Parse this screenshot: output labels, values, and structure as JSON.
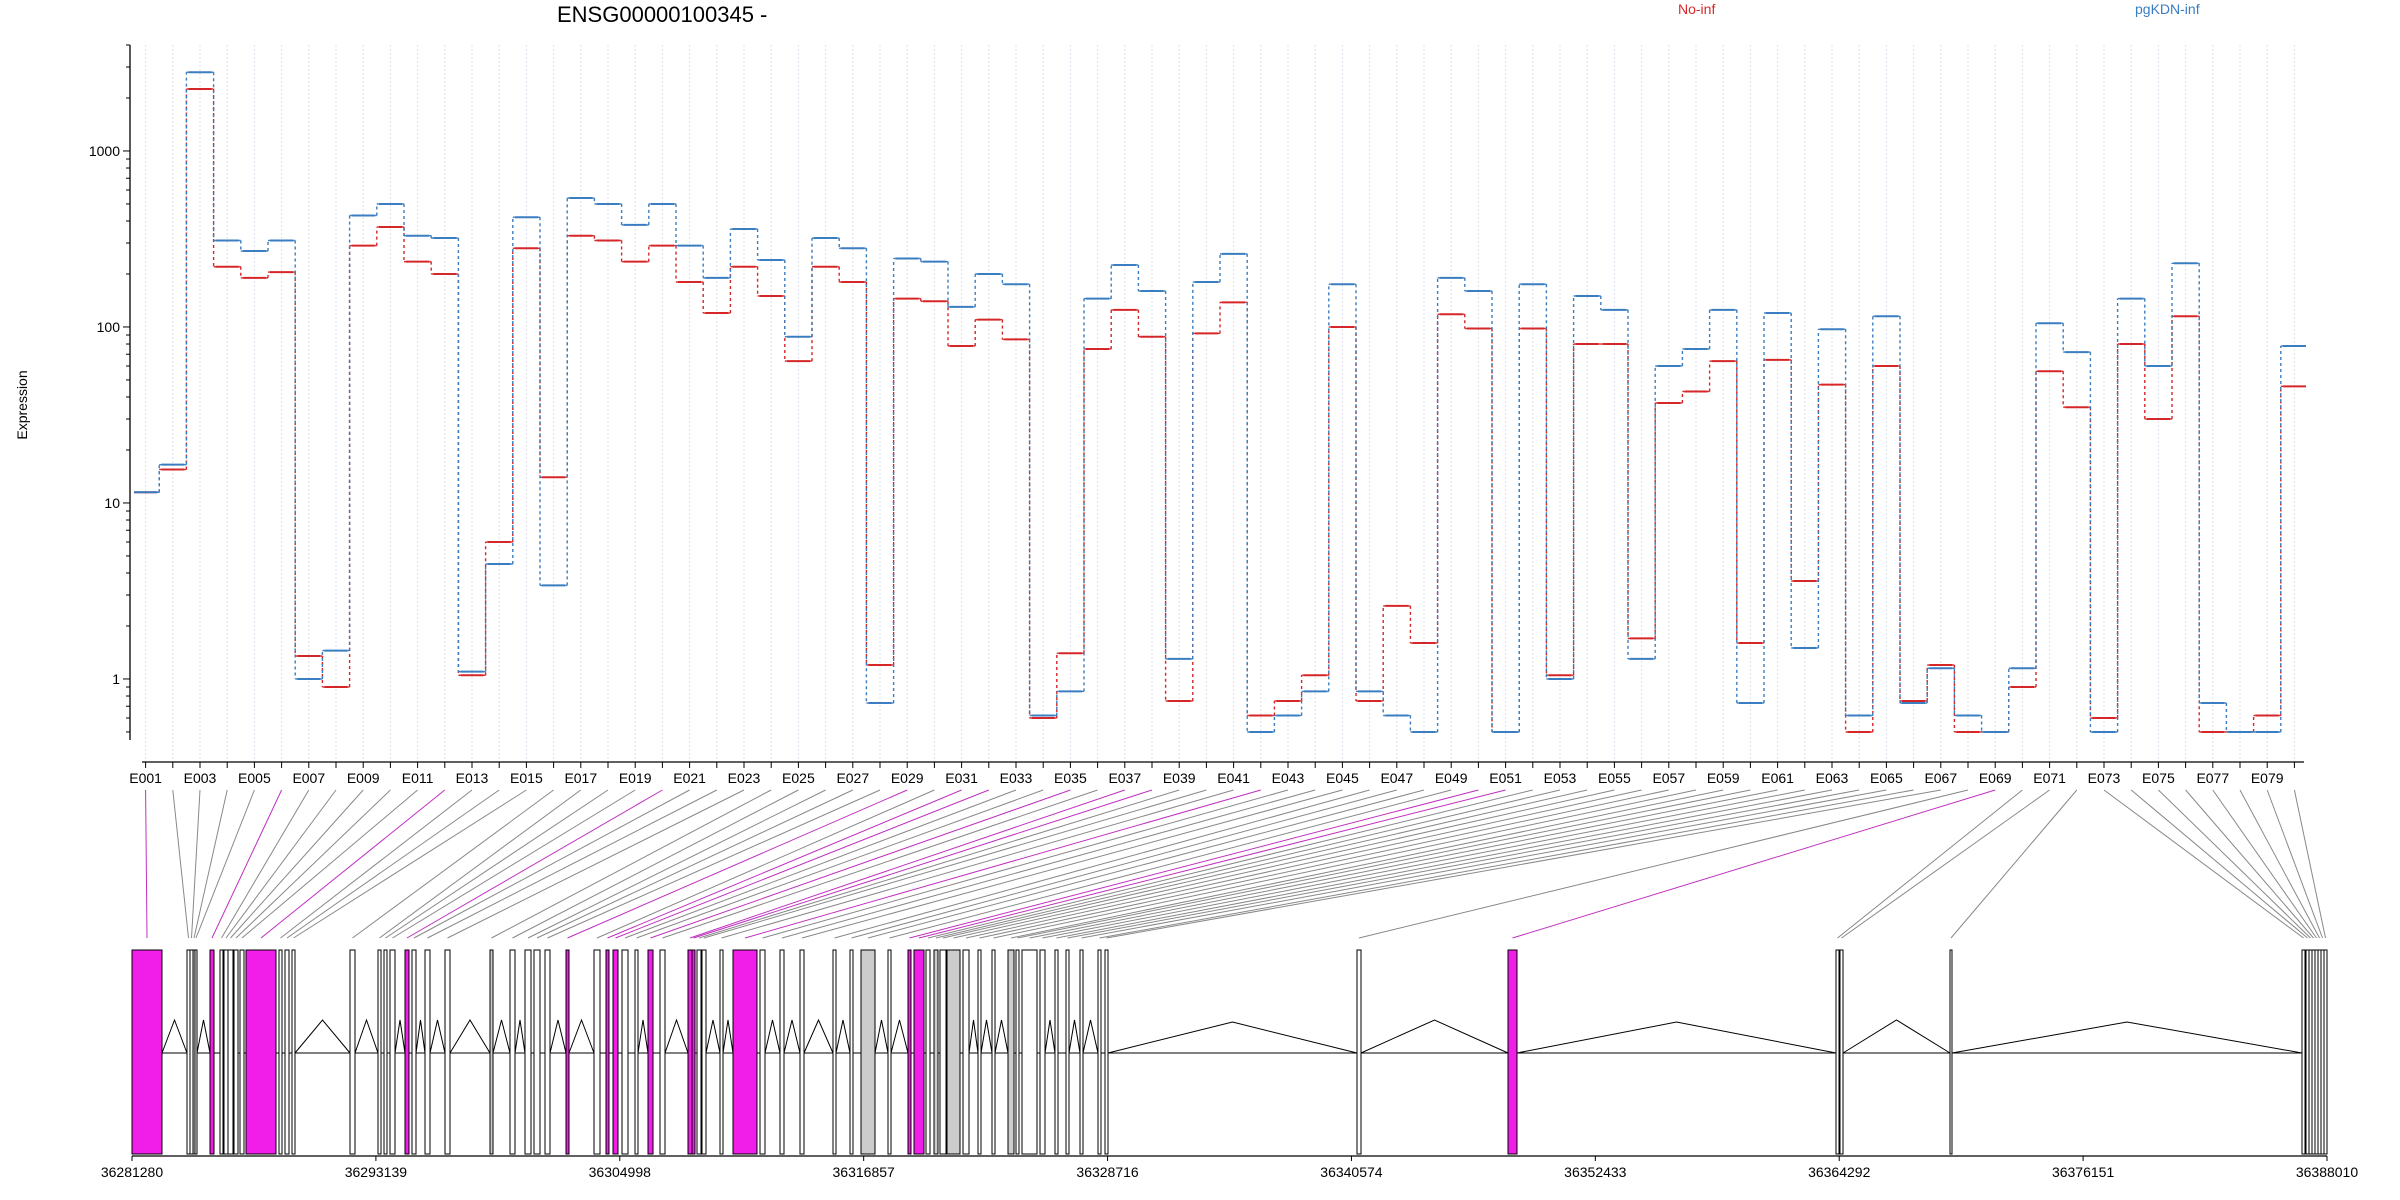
{
  "chart_data": {
    "type": "line",
    "title": "ENSG00000100345 -",
    "ylabel": "Expression",
    "yscale": "log",
    "ylim": [
      0.45,
      4000
    ],
    "yticks": [
      1,
      10,
      100,
      1000
    ],
    "ytick_labels": [
      "1",
      "10",
      "100",
      "1000"
    ],
    "x_tick_labels": [
      "E001",
      "E003",
      "E005",
      "E007",
      "E009",
      "E011",
      "E013",
      "E015",
      "E017",
      "E019",
      "E021",
      "E023",
      "E025",
      "E027",
      "E029",
      "E031",
      "E033",
      "E035",
      "E037",
      "E039",
      "E041",
      "E043",
      "E045",
      "E047",
      "E049",
      "E051",
      "E053",
      "E055",
      "E057",
      "E059",
      "E061",
      "E063",
      "E065",
      "E067",
      "E069",
      "E071",
      "E073",
      "E075",
      "E077",
      "E079"
    ],
    "exon_count": 80,
    "series": [
      {
        "name": "No-inf",
        "color": "#d62728",
        "values": [
          11.5,
          15.5,
          2250,
          220,
          190,
          205,
          1.35,
          0.9,
          290,
          370,
          235,
          200,
          1.05,
          6,
          280,
          14,
          330,
          310,
          235,
          290,
          180,
          120,
          220,
          150,
          64,
          220,
          180,
          1.2,
          145,
          140,
          78,
          110,
          85,
          0.6,
          1.4,
          75,
          125,
          88,
          0.75,
          92,
          138,
          0.62,
          0.75,
          1.05,
          100,
          0.75,
          2.6,
          1.6,
          118,
          98,
          0.5,
          98,
          1.05,
          80,
          80,
          1.7,
          37,
          43,
          64,
          1.6,
          65,
          3.6,
          47,
          0.5,
          60,
          0.75,
          1.2,
          0.5,
          0.5,
          0.9,
          56,
          35,
          0.6,
          80,
          30,
          115,
          0.5,
          0.5,
          0.62,
          46
        ]
      },
      {
        "name": "pgKDN-inf",
        "color": "#3a7dc0",
        "values": [
          11.5,
          16.5,
          2800,
          310,
          270,
          310,
          1.0,
          1.45,
          430,
          500,
          330,
          320,
          1.1,
          4.5,
          420,
          3.4,
          540,
          500,
          380,
          500,
          290,
          190,
          360,
          240,
          88,
          320,
          280,
          0.73,
          245,
          235,
          130,
          200,
          175,
          0.62,
          0.85,
          145,
          225,
          160,
          1.3,
          180,
          260,
          0.5,
          0.62,
          0.85,
          175,
          0.85,
          0.62,
          0.5,
          190,
          160,
          0.5,
          175,
          1.0,
          150,
          125,
          1.3,
          60,
          75,
          125,
          0.73,
          120,
          1.5,
          97,
          0.62,
          115,
          0.73,
          1.15,
          0.62,
          0.5,
          1.15,
          105,
          72,
          0.5,
          145,
          60,
          230,
          0.73,
          0.5,
          0.5,
          78
        ]
      }
    ],
    "exon_colors": {
      "significant": "#f01ee8",
      "shared": "#cccccc",
      "normal": "#ffffff"
    },
    "genome_axis": {
      "start": 36281280,
      "end": 36388010,
      "tick_labels": [
        "36281280",
        "36293139",
        "36304998",
        "36316857",
        "36328716",
        "36340574",
        "36352433",
        "36364292",
        "36376151",
        "36388010"
      ]
    }
  }
}
